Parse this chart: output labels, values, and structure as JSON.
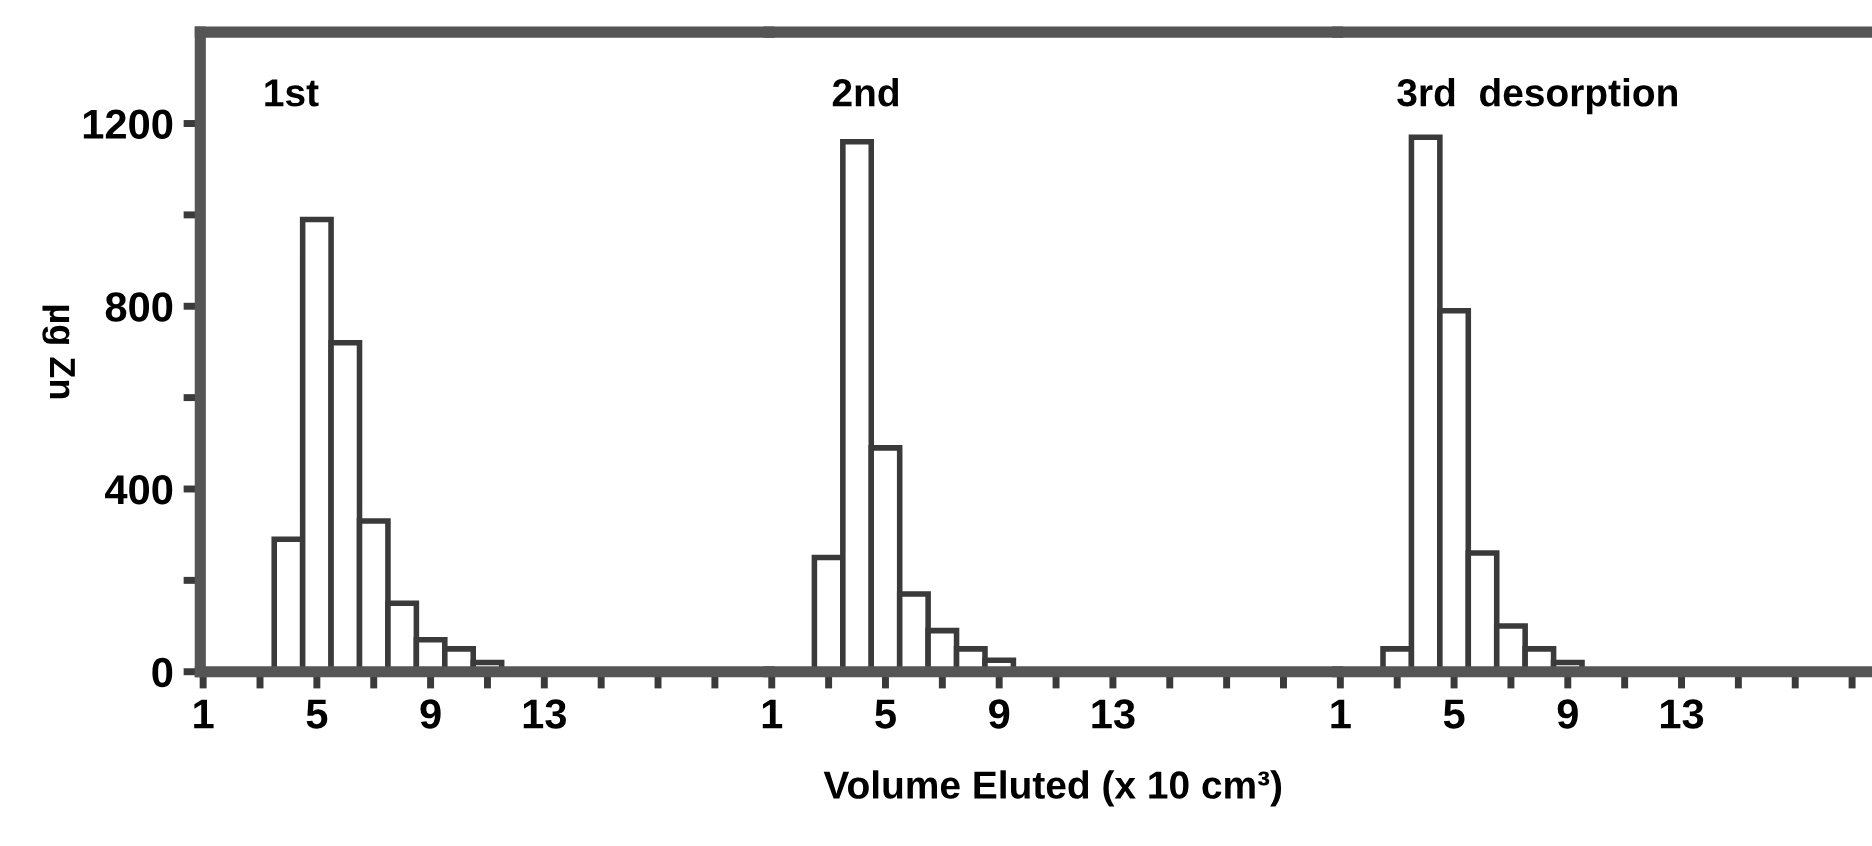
{
  "chart_data": [
    {
      "type": "bar",
      "ylabel": "µg Zn",
      "annotations": [
        "1st"
      ],
      "series": [
        {
          "color": "#ffffff",
          "x": [
            4,
            5,
            6,
            7,
            8,
            9,
            10,
            11
          ],
          "values": [
            290,
            990,
            720,
            330,
            150,
            70,
            50,
            20
          ]
        }
      ],
      "xlim": [
        0.9,
        20.9
      ],
      "ylim": [
        0,
        1400
      ],
      "xticks": [
        1,
        {
          "value": 3,
          "label": null
        },
        5,
        {
          "value": 7,
          "label": null
        },
        9,
        {
          "value": 11,
          "label": null
        },
        13,
        {
          "value": 15,
          "label": null
        },
        {
          "value": 17,
          "label": null
        },
        {
          "value": 19,
          "label": null
        }
      ],
      "yticks": [
        0,
        {
          "value": 200,
          "label": null
        },
        400,
        {
          "value": 600,
          "label": null
        },
        800,
        {
          "value": 1000,
          "label": null
        },
        1200
      ],
      "grid": false
    },
    {
      "type": "bar",
      "xlabel": "Volume Eluted (x 10 cm³)",
      "annotations": [
        "2nd"
      ],
      "series": [
        {
          "color": "#ffffff",
          "x": [
            3,
            4,
            5,
            6,
            7,
            8,
            9
          ],
          "values": [
            250,
            1160,
            490,
            170,
            90,
            50,
            25
          ]
        }
      ],
      "xlim": [
        0.9,
        20.9
      ],
      "ylim": [
        0,
        1400
      ],
      "xticks": [
        1,
        {
          "value": 3,
          "label": null
        },
        5,
        {
          "value": 7,
          "label": null
        },
        9,
        {
          "value": 11,
          "label": null
        },
        13,
        {
          "value": 15,
          "label": null
        },
        {
          "value": 17,
          "label": null
        },
        {
          "value": 19,
          "label": null
        }
      ],
      "tick_labels": "x",
      "grid": false
    },
    {
      "type": "bar",
      "annotations": [
        "3rd  desorption"
      ],
      "series": [
        {
          "color": "#ffffff",
          "x": [
            3,
            4,
            5,
            6,
            7,
            8,
            9
          ],
          "values": [
            50,
            1170,
            790,
            260,
            100,
            50,
            20
          ]
        }
      ],
      "xlim": [
        0.9,
        19.7
      ],
      "ylim": [
        0,
        1400
      ],
      "xticks": [
        1,
        {
          "value": 3,
          "label": null
        },
        5,
        {
          "value": 7,
          "label": null
        },
        9,
        {
          "value": 11,
          "label": null
        },
        13,
        {
          "value": 15,
          "label": null
        },
        {
          "value": 17,
          "label": null
        },
        {
          "value": 19,
          "label": null
        }
      ],
      "tick_labels": "x",
      "grid": false
    }
  ]
}
